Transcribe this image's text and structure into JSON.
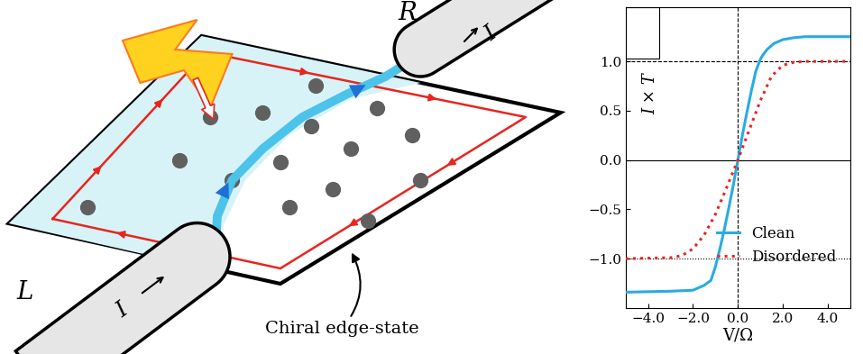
{
  "diagram": {
    "leads": [
      {
        "name": "L",
        "current": "I"
      },
      {
        "name": "R",
        "current": "I"
      }
    ],
    "edge_state_label": "Chiral edge-state"
  },
  "chart_data": {
    "type": "line",
    "xlabel": "V/Ω",
    "ylabel": "I × T",
    "xlim": [
      -5,
      5
    ],
    "xticks": [
      {
        "value": -4,
        "label": "−4.0"
      },
      {
        "value": -2,
        "label": "−2.0"
      },
      {
        "value": 0,
        "label": "0.0"
      },
      {
        "value": 2,
        "label": "2.0"
      },
      {
        "value": 4,
        "label": "4.0"
      }
    ],
    "ylim": [
      -1.5,
      1.55
    ],
    "yticks": [
      {
        "value": -1.0,
        "label": "−1.0"
      },
      {
        "value": -0.5,
        "label": "−0.5"
      },
      {
        "value": 0.0,
        "label": "0.0"
      },
      {
        "value": 0.5,
        "label": "0.5"
      },
      {
        "value": 1.0,
        "label": "1.0"
      }
    ],
    "legend": "lower right",
    "hlines": [
      {
        "y": 1.0,
        "line_style": "dashed"
      },
      {
        "y": -1.0,
        "line_style": "dotted"
      },
      {
        "y": 0.0,
        "line_style": "solid"
      }
    ],
    "vlines": [
      {
        "x": 0.0,
        "line_style": "dashed"
      }
    ],
    "series": [
      {
        "name": "Clean",
        "color": "#29abe2",
        "line_style": "solid",
        "x": [
          -5,
          -3,
          -2,
          -1.5,
          -1.2,
          -1.0,
          -0.8,
          -0.6,
          -0.4,
          -0.2,
          0,
          0.2,
          0.4,
          0.6,
          0.8,
          1.0,
          1.1,
          1.3,
          1.6,
          2.0,
          2.5,
          3,
          4,
          5
        ],
        "values": [
          -1.34,
          -1.33,
          -1.32,
          -1.27,
          -1.22,
          -1.08,
          -0.9,
          -0.7,
          -0.48,
          -0.25,
          0,
          0.25,
          0.48,
          0.7,
          0.9,
          1.02,
          1.06,
          1.12,
          1.18,
          1.22,
          1.24,
          1.25,
          1.25,
          1.25
        ]
      },
      {
        "name": "Disordered",
        "color": "#e8251f",
        "line_style": "dotted",
        "x": [
          -5,
          -3,
          -2.5,
          -2,
          -1.5,
          -1,
          -0.5,
          0,
          0.5,
          1,
          1.5,
          2,
          2.5,
          3,
          4,
          5
        ],
        "values": [
          -1.0,
          -0.99,
          -0.97,
          -0.9,
          -0.76,
          -0.55,
          -0.28,
          0,
          0.3,
          0.6,
          0.85,
          0.96,
          0.99,
          1.0,
          1.0,
          1.0
        ]
      }
    ]
  }
}
